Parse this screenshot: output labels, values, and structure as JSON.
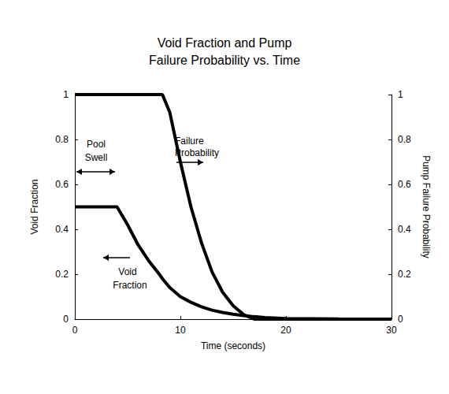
{
  "chart_data": {
    "type": "line",
    "title": "Void Fraction and Pump\nFailure Probability vs. Time",
    "x_label": "Time (seconds)",
    "y_label": "Void Fraction",
    "y2_label": "Pump Failure Probability",
    "x": [
      0,
      4,
      5,
      6,
      7,
      8,
      8.3,
      9,
      10,
      11,
      12,
      13,
      14,
      15,
      16,
      17,
      18,
      20,
      25,
      30
    ],
    "series": [
      {
        "name": "Void Fraction",
        "color": "#000000",
        "axis": "y",
        "values": [
          0.5,
          0.5,
          0.42,
          0.33,
          0.26,
          0.2,
          0.18,
          0.14,
          0.1,
          0.075,
          0.055,
          0.04,
          0.03,
          0.022,
          0.016,
          0.011,
          0.007,
          0.003,
          0.001,
          0
        ]
      },
      {
        "name": "Failure Probability",
        "color": "#000000",
        "axis": "y2",
        "values": [
          1,
          1,
          1,
          1,
          1,
          1,
          1,
          0.92,
          0.7,
          0.5,
          0.34,
          0.21,
          0.12,
          0.06,
          0.02,
          0,
          0,
          0,
          0,
          0
        ]
      }
    ],
    "xlim": [
      0,
      30
    ],
    "xticks": [
      0,
      10,
      20,
      30
    ],
    "ylim": [
      0,
      1
    ],
    "yticks": [
      0,
      0.2,
      0.4,
      0.6,
      0.8,
      1
    ],
    "y2lim": [
      0,
      1
    ],
    "y2ticks": [
      0,
      0.2,
      0.4,
      0.6,
      0.8,
      1
    ],
    "grid": false,
    "annotations": [
      "Pool Swell",
      "Failure Probability",
      "Void Fraction"
    ]
  }
}
